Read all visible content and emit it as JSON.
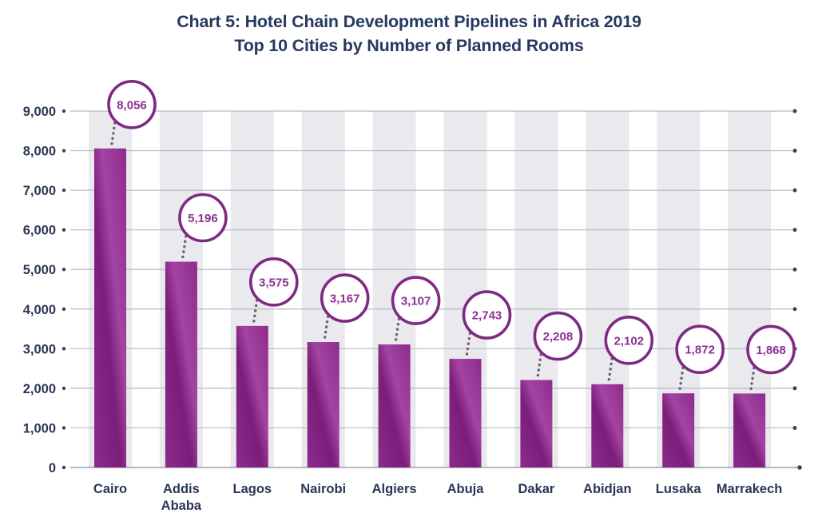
{
  "title": {
    "line1": "Chart 5: Hotel Chain Development Pipelines in Africa 2019",
    "line2": "Top 10 Cities by Number of Planned Rooms"
  },
  "chart_data": {
    "type": "bar",
    "title": "Chart 5: Hotel Chain Development Pipelines in Africa 2019",
    "subtitle": "Top 10 Cities by Number of Planned Rooms",
    "categories": [
      "Cairo",
      "Addis Ababa",
      "Lagos",
      "Nairobi",
      "Algiers",
      "Abuja",
      "Dakar",
      "Abidjan",
      "Lusaka",
      "Marrakech"
    ],
    "category_label_lines": [
      [
        "Cairo"
      ],
      [
        "Addis",
        "Ababa"
      ],
      [
        "Lagos"
      ],
      [
        "Nairobi"
      ],
      [
        "Algiers"
      ],
      [
        "Abuja"
      ],
      [
        "Dakar"
      ],
      [
        "Abidjan"
      ],
      [
        "Lusaka"
      ],
      [
        "Marrakech"
      ]
    ],
    "values": [
      8056,
      5196,
      3575,
      3167,
      3107,
      2743,
      2208,
      2102,
      1872,
      1868
    ],
    "value_labels": [
      "8,056",
      "5,196",
      "3,575",
      "3,167",
      "3,107",
      "2,743",
      "2,208",
      "2,102",
      "1,872",
      "1,868"
    ],
    "ylabel": "",
    "xlabel": "",
    "ylim": [
      0,
      9000
    ],
    "y_tick_step": 1000,
    "y_tick_labels": [
      "0",
      "1,000",
      "2,000",
      "3,000",
      "4,000",
      "5,000",
      "6,000",
      "7,000",
      "8,000",
      "9,000"
    ],
    "grid": "horizontal-gridlines-with-end-dots",
    "legend": "none",
    "annotations": "each bar has a circled value bubble connected by a dotted line"
  },
  "colors": {
    "title_text": "#26395f",
    "axis_text": "#2a3655",
    "bar_dark": "#7b1d79",
    "bar_mid": "#8d2b8c",
    "bar_light": "#a344a2",
    "bubble_fill": "#ffffff",
    "bubble_border": "#7e2a83",
    "value_text": "#8c3292",
    "gridline": "#b6bac2",
    "baseline": "#9aa1ab",
    "stripe": "#e9e9ee",
    "connector": "#6d6070",
    "tick_dot": "#39435a"
  }
}
